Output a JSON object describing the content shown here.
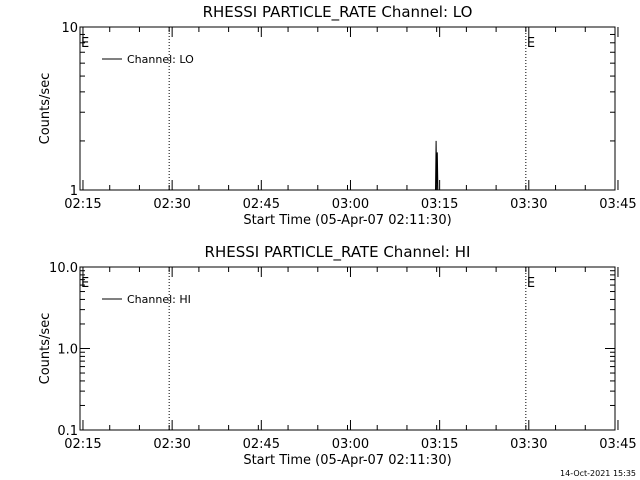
{
  "footer": {
    "timestamp": "14-Oct-2021 15:35"
  },
  "colors": {
    "foreground": "#000000",
    "background": "#ffffff"
  },
  "chart_data": [
    {
      "type": "line",
      "title": "RHESSI PARTICLE_RATE Channel: LO",
      "xlabel": "Start Time (05-Apr-07 02:11:30)",
      "ylabel": "Counts/sec",
      "yscale": "log",
      "ylim": [
        1,
        10
      ],
      "y_ticks": [
        1,
        10
      ],
      "y_tick_labels": [
        "1",
        "10"
      ],
      "xlim_minutes": [
        3,
        93
      ],
      "x_ticks": [
        3.5,
        18.5,
        33.5,
        48.5,
        63.5,
        78.5,
        93.5
      ],
      "x_tick_labels": [
        "02:15",
        "02:30",
        "02:45",
        "03:00",
        "03:15",
        "03:30",
        "03:45"
      ],
      "legend": {
        "label": "Channel: LO",
        "position": "top-left"
      },
      "event_markers": [
        {
          "label": "E",
          "x": 0
        },
        {
          "label": "",
          "x": 18
        },
        {
          "label": "E",
          "x": 78
        },
        {
          "label": "",
          "x": 95.5
        }
      ],
      "series": [
        {
          "name": "Channel: LO",
          "x": [
            62.7,
            62.8,
            62.9,
            63.0,
            63.1,
            63.2,
            63.3
          ],
          "y": [
            1,
            1,
            2,
            1,
            1.7,
            1,
            1
          ]
        }
      ]
    },
    {
      "type": "line",
      "title": "RHESSI PARTICLE_RATE Channel: HI",
      "xlabel": "Start Time (05-Apr-07 02:11:30)",
      "ylabel": "Counts/sec",
      "yscale": "log",
      "ylim": [
        0.1,
        10
      ],
      "y_ticks": [
        0.1,
        1,
        10
      ],
      "y_tick_labels": [
        "0.1",
        "1.0",
        "10.0"
      ],
      "xlim_minutes": [
        3,
        93
      ],
      "x_ticks": [
        3.5,
        18.5,
        33.5,
        48.5,
        63.5,
        78.5,
        93.5
      ],
      "x_tick_labels": [
        "02:15",
        "02:30",
        "02:45",
        "03:00",
        "03:15",
        "03:30",
        "03:45"
      ],
      "legend": {
        "label": "Channel: HI",
        "position": "top-left"
      },
      "event_markers": [
        {
          "label": "E",
          "x": 0
        },
        {
          "label": "",
          "x": 18
        },
        {
          "label": "E",
          "x": 78
        },
        {
          "label": "",
          "x": 95.5
        }
      ],
      "series": [
        {
          "name": "Channel: HI",
          "x": [],
          "y": []
        }
      ]
    }
  ]
}
